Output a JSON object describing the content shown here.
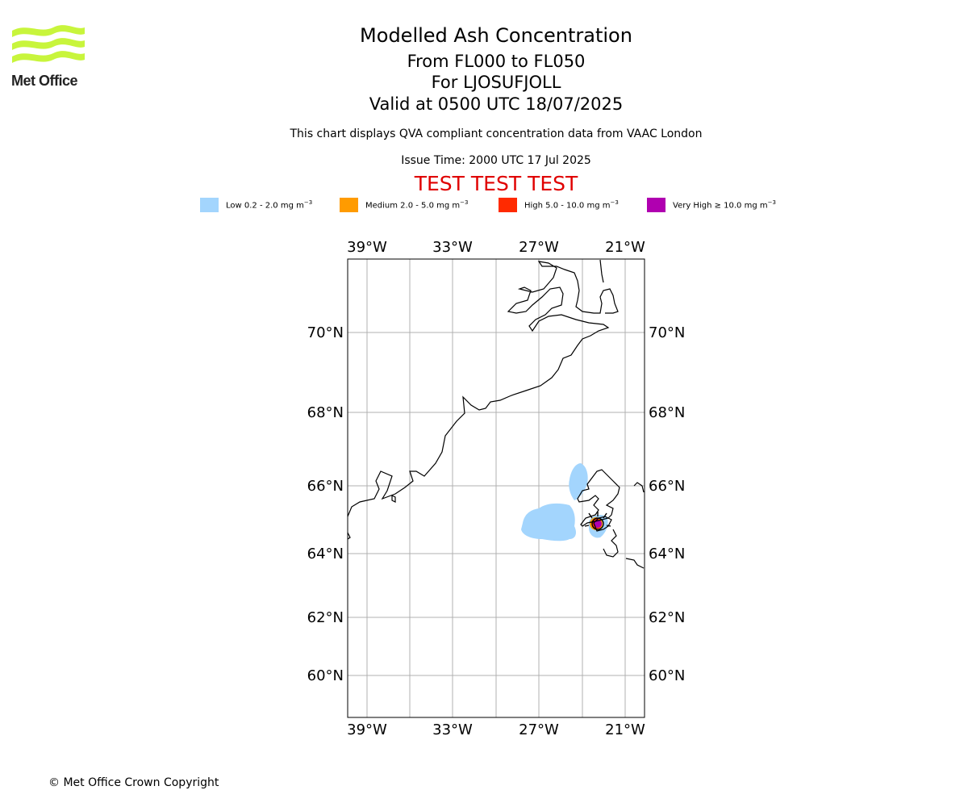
{
  "header": {
    "title": "Modelled Ash Concentration",
    "levels": "From FL000 to FL050",
    "volcano": "For LJOSUFJOLL",
    "valid": "Valid at 0500 UTC 18/07/2025",
    "note": "This chart displays QVA compliant concentration data from VAAC London",
    "issue": "Issue Time: 2000 UTC 17 Jul 2025",
    "test_banner": "TEST TEST TEST"
  },
  "logo": {
    "text": "Met Office",
    "color": "#c8f53c"
  },
  "legend": [
    {
      "label": "Low 0.2 - 2.0 mg m",
      "exp": "−3",
      "color": "#a3d5fd"
    },
    {
      "label": "Medium 2.0 - 5.0 mg m",
      "exp": "−3",
      "color": "#ff9b00"
    },
    {
      "label": "High 5.0 - 10.0 mg m",
      "exp": "−3",
      "color": "#ff2a00"
    },
    {
      "label": "Very High  ≥  10.0 mg m",
      "exp": "−3",
      "color": "#b000b0"
    }
  ],
  "map": {
    "lon_labels": [
      "39°W",
      "33°W",
      "27°W",
      "21°W"
    ],
    "lat_labels": [
      "70°N",
      "68°N",
      "66°N",
      "64°N",
      "62°N",
      "60°N"
    ],
    "grid": true
  },
  "footer": {
    "copyright": "© Met Office Crown Copyright"
  }
}
